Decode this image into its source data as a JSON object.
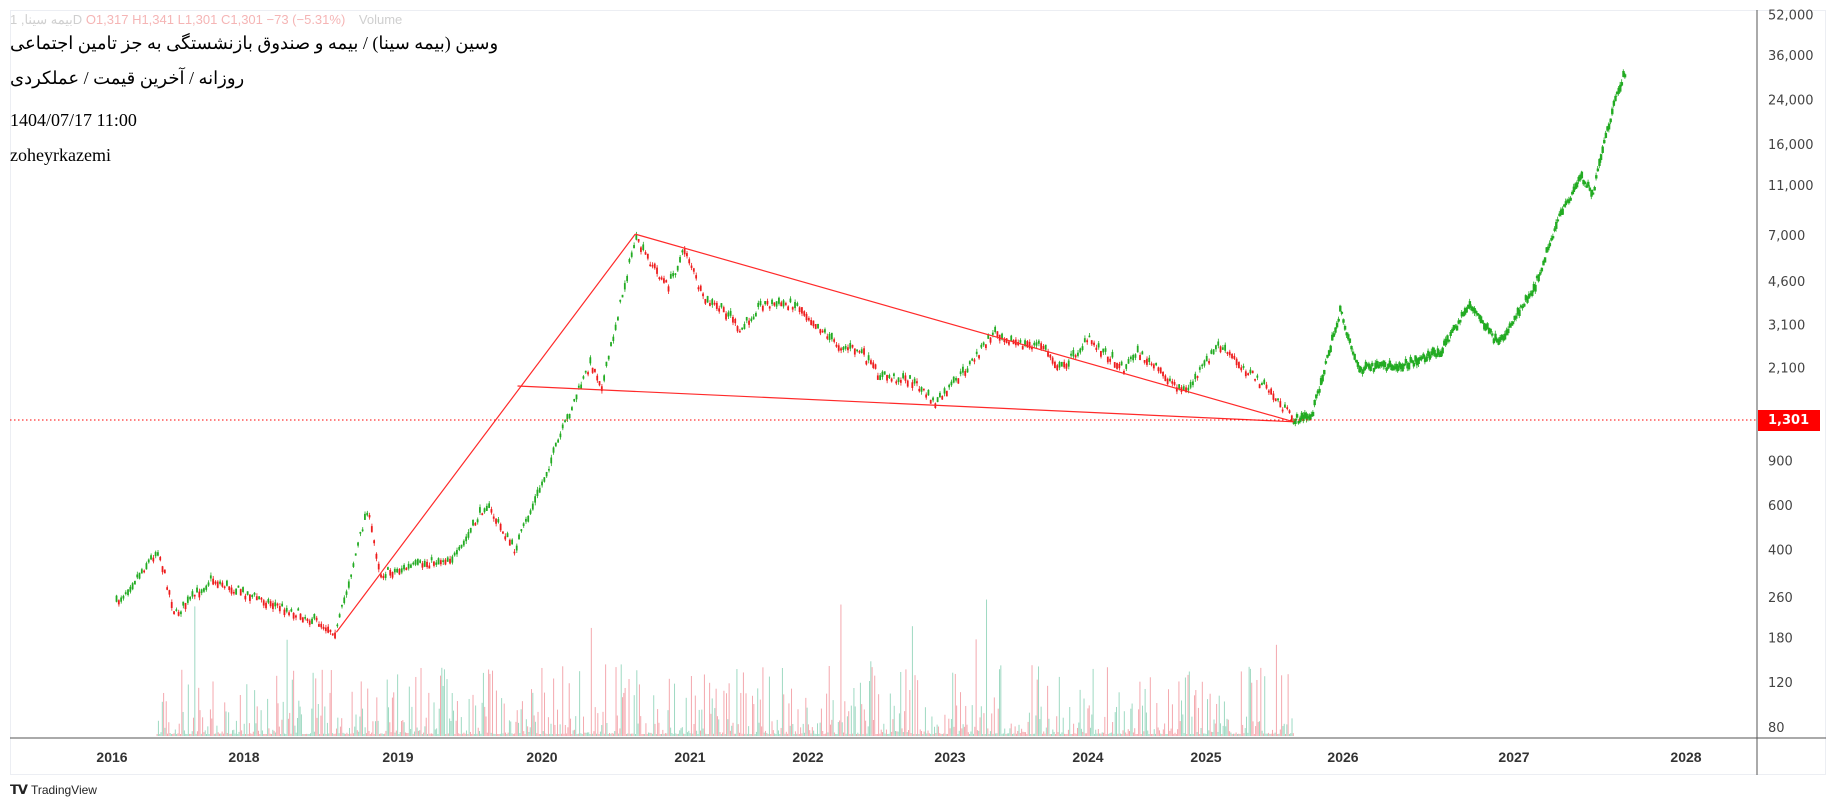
{
  "legend": {
    "symbol": "بیمه سینا, 1D",
    "ohlc": "O1,317  H1,341  L1,301  C1,301  −73 (−5.31%)",
    "volume_label": "Volume"
  },
  "header": {
    "title": "وسین (بیمه سینا) / بیمه و صندوق بازنشستگی به جز تامین اجتماعی",
    "subtitle": "روزانه / آخرین قیمت / عملکردی",
    "datetime": "1404/07/17 11:00",
    "author": "zoheyrkazemi"
  },
  "brand": {
    "name": "TradingView",
    "logo": "TV"
  },
  "colors": {
    "up": "#22ab22",
    "down": "#ee1c1c",
    "trendline": "#ff2a2a",
    "last_price": "#ff0000",
    "vol_up": "#9ed9c2",
    "vol_down": "#f4a8ae"
  },
  "chart_data": {
    "type": "candlestick",
    "scale": "log",
    "title": "وسین (بیمه سینا)",
    "last_price": 1301,
    "last_price_label": "1,301",
    "y_ticks": [
      52000,
      36000,
      24000,
      16000,
      11000,
      7000,
      4600,
      3100,
      2100,
      900,
      600,
      400,
      260,
      180,
      120,
      80
    ],
    "y_tick_labels": [
      "52,000",
      "36,000",
      "24,000",
      "16,000",
      "11,000",
      "7,000",
      "4,600",
      "3,100",
      "2,100",
      "900",
      "600",
      "400",
      "260",
      "180",
      "120",
      "80"
    ],
    "x_ticks": [
      "2016",
      "2018",
      "2019",
      "2020",
      "2021",
      "2022",
      "2023",
      "2024",
      "2025",
      "2026",
      "2027",
      "2028"
    ],
    "history": [
      [
        2016.07,
        246
      ],
      [
        2016.7,
        400
      ],
      [
        2016.96,
        221
      ],
      [
        2017.5,
        305
      ],
      [
        2018.47,
        209
      ],
      [
        2018.6,
        189
      ],
      [
        2018.8,
        579
      ],
      [
        2018.89,
        320
      ],
      [
        2019.41,
        377
      ],
      [
        2019.61,
        608
      ],
      [
        2019.81,
        400
      ],
      [
        2019.98,
        680
      ],
      [
        2020.21,
        1504
      ],
      [
        2020.33,
        2190
      ],
      [
        2020.41,
        1772
      ],
      [
        2020.53,
        3735
      ],
      [
        2020.63,
        6700
      ],
      [
        2020.85,
        4360
      ],
      [
        2020.97,
        6200
      ],
      [
        2021.11,
        3905
      ],
      [
        2021.36,
        3350
      ],
      [
        2021.41,
        2840
      ],
      [
        2021.6,
        3735
      ],
      [
        2021.9,
        3735
      ],
      [
        2022.21,
        2570
      ],
      [
        2022.37,
        2430
      ],
      [
        2022.5,
        1955
      ],
      [
        2022.74,
        1856
      ],
      [
        2022.9,
        1504
      ],
      [
        2023.12,
        2070
      ],
      [
        2023.33,
        2925
      ],
      [
        2023.5,
        2570
      ],
      [
        2023.67,
        2570
      ],
      [
        2023.8,
        2070
      ],
      [
        2024.01,
        2700
      ],
      [
        2024.31,
        2070
      ],
      [
        2024.41,
        2430
      ],
      [
        2024.7,
        1856
      ],
      [
        2024.83,
        1680
      ],
      [
        2025.09,
        2570
      ],
      [
        2025.34,
        1955
      ],
      [
        2025.47,
        1680
      ],
      [
        2025.64,
        1301
      ]
    ],
    "projection": [
      [
        2025.64,
        1301
      ],
      [
        2025.77,
        1350
      ],
      [
        2025.98,
        3500
      ],
      [
        2026.09,
        2070
      ],
      [
        2026.36,
        2150
      ],
      [
        2026.57,
        2430
      ],
      [
        2026.74,
        3735
      ],
      [
        2026.91,
        2570
      ],
      [
        2027.05,
        3735
      ],
      [
        2027.12,
        4360
      ],
      [
        2027.25,
        7870
      ],
      [
        2027.39,
        12000
      ],
      [
        2027.46,
        10240
      ],
      [
        2027.52,
        15700
      ],
      [
        2027.59,
        23900
      ],
      [
        2027.65,
        31400
      ]
    ],
    "trendlines": [
      {
        "from": [
          2018.6,
          189
        ],
        "to": [
          2020.63,
          7050
        ]
      },
      {
        "from": [
          2020.63,
          7050
        ],
        "to": [
          2025.64,
          1280
        ]
      },
      {
        "from": [
          2019.83,
          1772
        ],
        "to": [
          2025.64,
          1280
        ]
      }
    ]
  }
}
